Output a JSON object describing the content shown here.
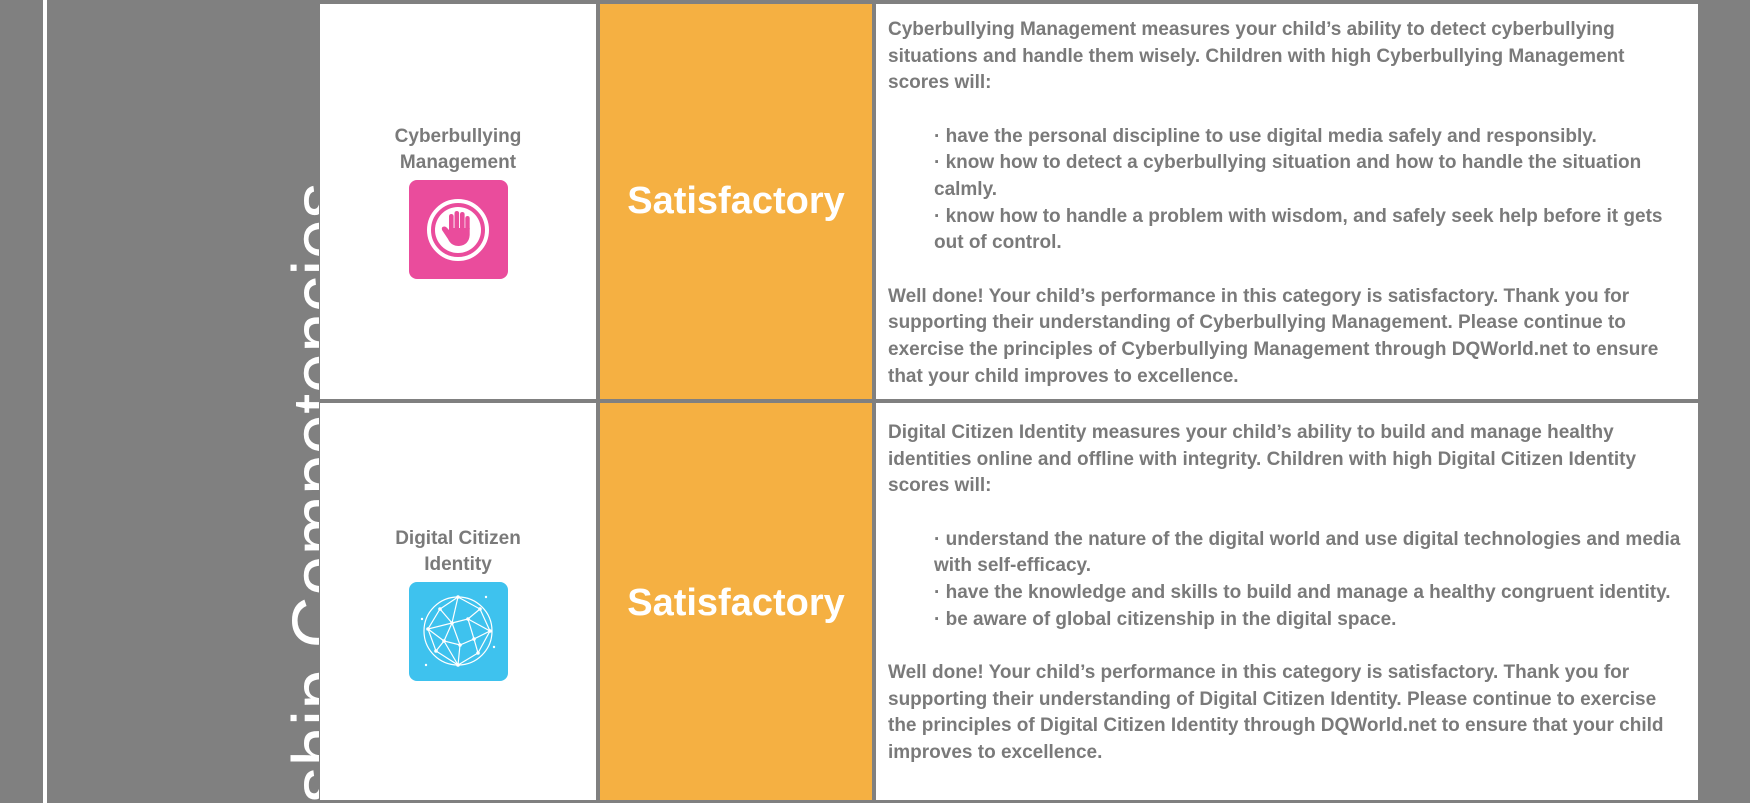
{
  "side": {
    "title": "ship Competencies"
  },
  "rows": [
    {
      "name": "Cyberbullying Management",
      "rating": "Satisfactory",
      "icon": "raised-hand-icon",
      "icon_color": "#ea4c9c",
      "intro": "Cyberbullying Management measures your child’s ability to detect cyberbullying situations and handle them wisely. Children with high Cyberbullying Management scores will:",
      "bullets": [
        "· have the personal discipline to use digital media safely and responsibly.",
        "· know how to detect a cyberbullying situation and how to handle the situation calmly.",
        "· know how to handle a problem with wisdom, and safely seek help before it gets out of control."
      ],
      "outro": "Well done! Your child’s performance in this category is satisfactory. Thank you for supporting their understanding of Cyberbullying Management. Please continue to exercise the principles of Cyberbullying Management through DQWorld.net to ensure that your child improves to excellence."
    },
    {
      "name": "Digital Citizen Identity",
      "rating": "Satisfactory",
      "icon": "network-globe-icon",
      "icon_color": "#3ec2ee",
      "intro": "Digital Citizen Identity measures your child’s ability to build and manage healthy identities online and offline with integrity. Children with high Digital Citizen Identity scores will:",
      "bullets": [
        "· understand the nature of the digital world and use digital technologies and media with self-efficacy.",
        "· have the knowledge and skills to build and manage a healthy congruent identity.",
        "· be aware of global citizenship in the digital space."
      ],
      "outro": "Well done! Your child’s performance in this category is satisfactory. Thank you for supporting their understanding of Digital Citizen Identity. Please continue to exercise the principles of Digital Citizen Identity through DQWorld.net to ensure that your child improves to excellence."
    }
  ],
  "colors": {
    "rating_bg": "#f5b042",
    "border": "#808080",
    "text": "#7a7a7a"
  }
}
